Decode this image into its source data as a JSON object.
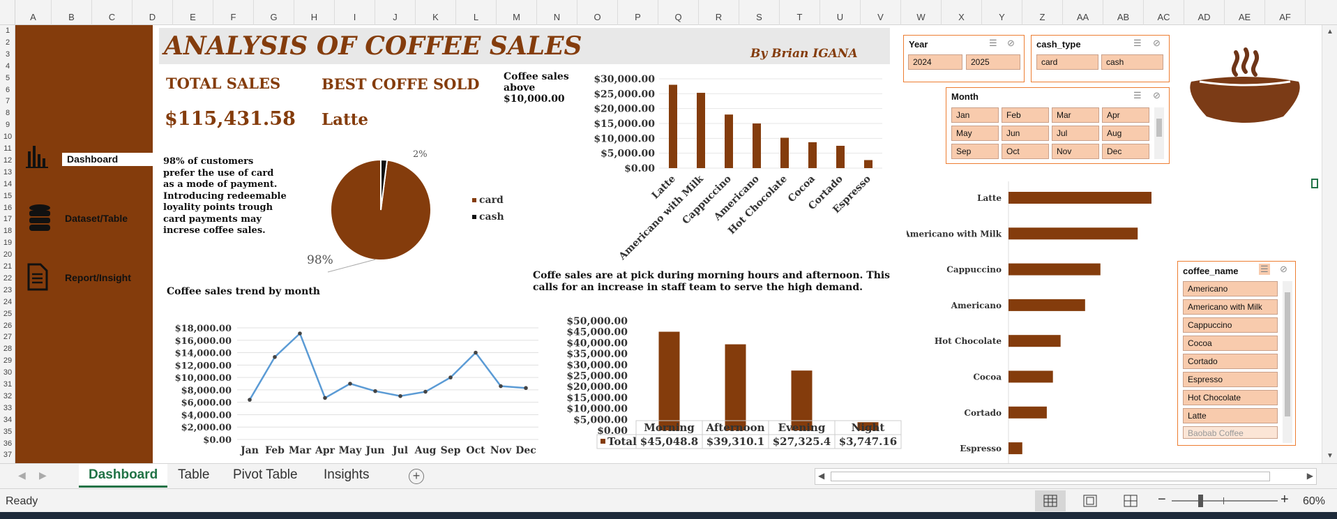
{
  "columns": [
    "A",
    "B",
    "C",
    "D",
    "E",
    "F",
    "G",
    "H",
    "I",
    "J",
    "K",
    "L",
    "M",
    "N",
    "O",
    "P",
    "Q",
    "R",
    "S",
    "T",
    "U",
    "V",
    "W",
    "X",
    "Y",
    "Z",
    "AA",
    "AB",
    "AC",
    "AD",
    "AE",
    "AF"
  ],
  "rows": [
    "1",
    "2",
    "3",
    "4",
    "5",
    "6",
    "7",
    "8",
    "9",
    "10",
    "11",
    "12",
    "13",
    "14",
    "15",
    "16",
    "17",
    "18",
    "19",
    "20",
    "21",
    "22",
    "23",
    "24",
    "25",
    "26",
    "27",
    "28",
    "29",
    "30",
    "31",
    "32",
    "33",
    "34",
    "35",
    "36",
    "37"
  ],
  "nav": {
    "dashboard": "Dashboard",
    "dataset": "Dataset/Table",
    "report": "Report/Insight"
  },
  "header": {
    "title": "ANALYSIS OF COFFEE SALES",
    "author": "By Brian IGANA"
  },
  "kpi": {
    "total_label": "TOTAL SALES",
    "total_value": "$115,431.58",
    "best_label": "BEST COFFE SOLD",
    "best_value": "Latte"
  },
  "notes": {
    "payment": "98% of customers prefer the use of card as a mode of payment. Introducing redeemable loyality points trough card payments may increse coffee sales.",
    "above": "Coffee sales above $10,000.00",
    "peak": "Coffe sales are at pick during morning hours and afternoon. This calls for an increase in staff team to serve the high demand.",
    "trend": "Coffee sales trend by month"
  },
  "slicers": {
    "year": {
      "title": "Year",
      "items": [
        "2024",
        "2025"
      ]
    },
    "cash": {
      "title": "cash_type",
      "items": [
        "card",
        "cash"
      ]
    },
    "month": {
      "title": "Month",
      "items": [
        "Jan",
        "Feb",
        "Mar",
        "Apr",
        "May",
        "Jun",
        "Jul",
        "Aug",
        "Sep",
        "Oct",
        "Nov",
        "Dec"
      ]
    },
    "coffee": {
      "title": "coffee_name",
      "items": [
        "Americano",
        "Americano with Milk",
        "Cappuccino",
        "Cocoa",
        "Cortado",
        "Espresso",
        "Hot Chocolate",
        "Latte"
      ],
      "dim_item": "Baobab Coffee"
    }
  },
  "colors": {
    "brown": "#843c0c",
    "line": "#5b9bd5",
    "accent": "#ed7d31",
    "slicer_btn": "#f8cbad"
  },
  "chart_data": [
    {
      "type": "pie",
      "slices": [
        {
          "label": "card",
          "value": 98,
          "display": "98%"
        },
        {
          "label": "cash",
          "value": 2,
          "display": "2%"
        }
      ],
      "legend": "right"
    },
    {
      "type": "bar",
      "categories": [
        "Latte",
        "Americano with Milk",
        "Cappuccino",
        "Americano",
        "Hot Chocolate",
        "Cocoa",
        "Cortado",
        "Espresso"
      ],
      "values": [
        28000,
        25300,
        18000,
        15000,
        10200,
        8700,
        7500,
        2700
      ],
      "ylim": [
        0,
        30000
      ],
      "yticks": [
        "$0.00",
        "$5,000.00",
        "$10,000.00",
        "$15,000.00",
        "$20,000.00",
        "$25,000.00",
        "$30,000.00"
      ]
    },
    {
      "type": "line",
      "categories": [
        "Jan",
        "Feb",
        "Mar",
        "Apr",
        "May",
        "Jun",
        "Jul",
        "Aug",
        "Sep",
        "Oct",
        "Nov",
        "Dec"
      ],
      "values": [
        6400,
        13300,
        17100,
        6700,
        9000,
        7800,
        7000,
        7700,
        10000,
        14000,
        8600,
        8300
      ],
      "ylim": [
        0,
        18000
      ],
      "yticks": [
        "$0.00",
        "$2,000.00",
        "$4,000.00",
        "$6,000.00",
        "$8,000.00",
        "$10,000.00",
        "$12,000.00",
        "$14,000.00",
        "$16,000.00",
        "$18,000.00"
      ]
    },
    {
      "type": "bar",
      "categories": [
        "Morning",
        "Afternoon",
        "Evening",
        "Night"
      ],
      "values": [
        45048.8,
        39310.1,
        27325.4,
        3747.16
      ],
      "table_values": [
        "$45,048.8",
        "$39,310.1",
        "$27,325.4",
        "$3,747.16"
      ],
      "series_label": "Total",
      "ylim": [
        0,
        50000
      ],
      "yticks": [
        "$0.00",
        "$5,000.00",
        "$10,000.00",
        "$15,000.00",
        "$20,000.00",
        "$25,000.00",
        "$30,000.00",
        "$35,000.00",
        "$40,000.00",
        "$45,000.00",
        "$50,000.00"
      ]
    },
    {
      "type": "bar",
      "orientation": "horizontal",
      "categories": [
        "Latte",
        "Americano with Milk",
        "Cappuccino",
        "Americano",
        "Hot Chocolate",
        "Cocoa",
        "Cortado",
        "Espresso"
      ],
      "values": [
        28000,
        25300,
        18000,
        15000,
        10200,
        8700,
        7500,
        2700
      ]
    }
  ],
  "tabs": [
    "Dashboard",
    "Table",
    "Pivot Table",
    "Insights"
  ],
  "status": {
    "ready": "Ready",
    "zoom": "60%"
  }
}
